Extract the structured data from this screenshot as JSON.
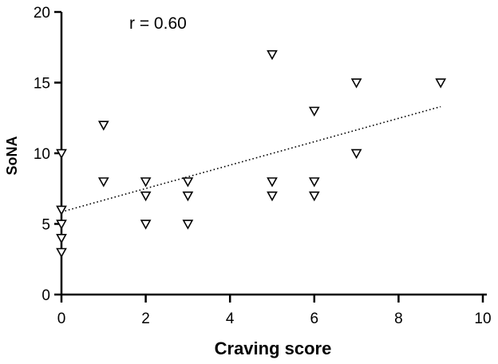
{
  "chart_data": {
    "type": "scatter",
    "title": "",
    "xlabel": "Craving score",
    "ylabel": "SoNA",
    "xlim": [
      0,
      10
    ],
    "ylim": [
      0,
      20
    ],
    "xticks": [
      0,
      2,
      4,
      6,
      8,
      10
    ],
    "yticks": [
      0,
      5,
      10,
      15,
      20
    ],
    "xtick_labels": [
      "0",
      "2",
      "4",
      "6",
      "8",
      "10"
    ],
    "ytick_labels": [
      "0",
      "5",
      "10",
      "15",
      "20"
    ],
    "grid": false,
    "legend": "none",
    "marker": "open-triangle-down",
    "annotation": "r = 0.60",
    "series": [
      {
        "points": [
          {
            "x": 0,
            "y": 10
          },
          {
            "x": 0,
            "y": 6
          },
          {
            "x": 0,
            "y": 5
          },
          {
            "x": 0,
            "y": 4
          },
          {
            "x": 0,
            "y": 3
          },
          {
            "x": 1,
            "y": 12
          },
          {
            "x": 1,
            "y": 8
          },
          {
            "x": 2,
            "y": 8
          },
          {
            "x": 2,
            "y": 7
          },
          {
            "x": 2,
            "y": 5
          },
          {
            "x": 3,
            "y": 8
          },
          {
            "x": 3,
            "y": 7
          },
          {
            "x": 3,
            "y": 5
          },
          {
            "x": 5,
            "y": 17
          },
          {
            "x": 5,
            "y": 8
          },
          {
            "x": 5,
            "y": 7
          },
          {
            "x": 6,
            "y": 13
          },
          {
            "x": 6,
            "y": 8
          },
          {
            "x": 6,
            "y": 7
          },
          {
            "x": 7,
            "y": 15
          },
          {
            "x": 7,
            "y": 10
          },
          {
            "x": 9,
            "y": 15
          }
        ]
      }
    ],
    "trendline": {
      "style": "dotted",
      "x": [
        0,
        9
      ],
      "y": [
        5.85,
        13.3
      ]
    }
  }
}
